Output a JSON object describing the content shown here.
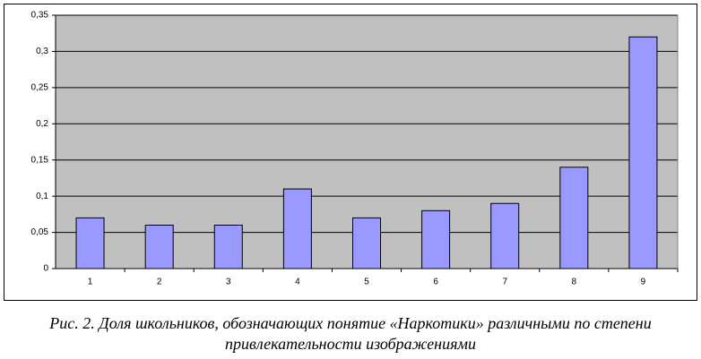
{
  "chart_data": {
    "type": "bar",
    "caption": "Рис. 2. Доля школьников, обозначающих понятие «Наркотики» различными по степени привлекательности изображениями",
    "categories": [
      "1",
      "2",
      "3",
      "4",
      "5",
      "6",
      "7",
      "8",
      "9"
    ],
    "values": [
      0.07,
      0.06,
      0.06,
      0.11,
      0.07,
      0.08,
      0.09,
      0.14,
      0.32
    ],
    "color": "#9999ff",
    "ylim": [
      0,
      0.35
    ],
    "yticks": [
      0,
      {
        "value": 0.05,
        "label": "0,05"
      },
      {
        "value": 0.1,
        "label": "0,1"
      },
      {
        "value": 0.15,
        "label": "0,15"
      },
      {
        "value": 0.2,
        "label": "0,2"
      },
      {
        "value": 0.25,
        "label": "0,25"
      },
      {
        "value": 0.3,
        "label": "0,3"
      },
      {
        "value": 0.35,
        "label": "0,35"
      }
    ],
    "grid": true
  }
}
